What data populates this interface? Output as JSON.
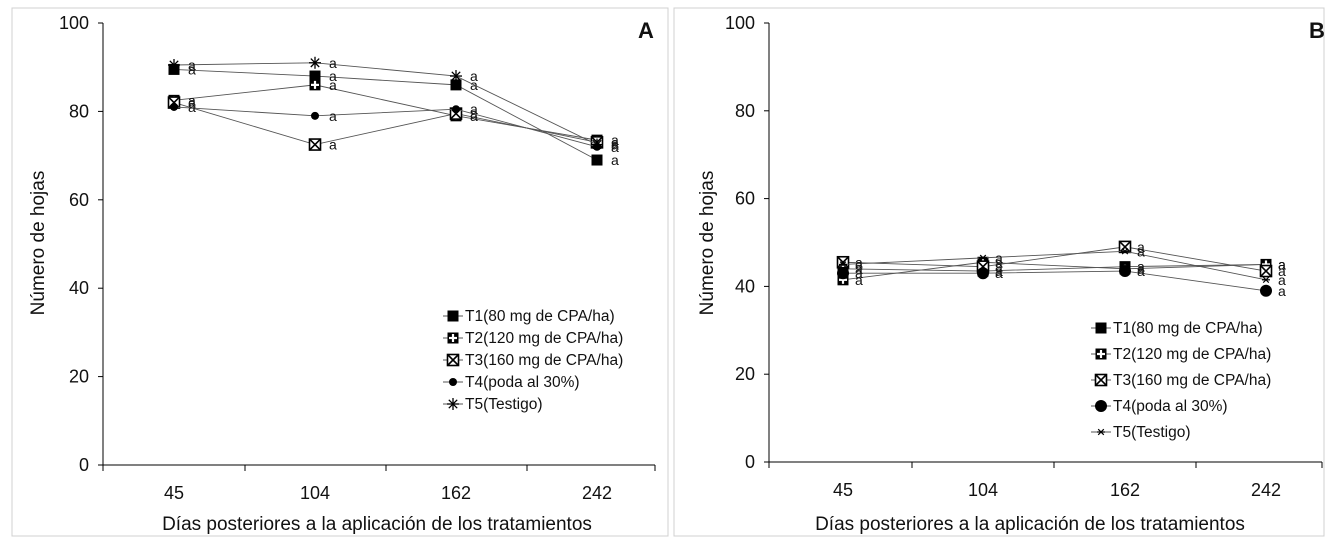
{
  "chart_data": [
    {
      "panel": "A",
      "type": "line",
      "xlabel": "Días posteriores a la aplicación de los tratamientos",
      "ylabel": "Número de hojas",
      "categories": [
        "45",
        "104",
        "162",
        "242"
      ],
      "ylim": [
        0,
        100
      ],
      "yticks": [
        "0",
        "20",
        "40",
        "60",
        "80",
        "100"
      ],
      "grid": false,
      "legend_position": "bottom-right",
      "series": [
        {
          "name": "T1(80 mg de CPA/ha)",
          "marker": "square",
          "values": [
            89.5,
            88.0,
            86.0,
            69.0
          ],
          "labels": [
            "a",
            "a",
            "a",
            "a"
          ]
        },
        {
          "name": "T2(120 mg de CPA/ha)",
          "marker": "square-cross",
          "values": [
            82.5,
            86.0,
            79.0,
            73.5
          ],
          "labels": [
            "a",
            "a",
            "a",
            "a"
          ]
        },
        {
          "name": "T3(160 mg de CPA/ha)",
          "marker": "square-x",
          "values": [
            82.0,
            72.5,
            79.5,
            73.0
          ],
          "labels": [
            "a",
            "a",
            "a",
            "a"
          ]
        },
        {
          "name": "T4(poda al 30%)",
          "marker": "circle-small",
          "values": [
            81.0,
            79.0,
            80.5,
            72.0
          ],
          "labels": [
            "a",
            "a",
            "a",
            "a"
          ]
        },
        {
          "name": "T5(Testigo)",
          "marker": "asterisk",
          "values": [
            90.5,
            91.0,
            88.0,
            72.5
          ],
          "labels": [
            "a",
            "a",
            "a",
            "a"
          ]
        }
      ]
    },
    {
      "panel": "B",
      "type": "line",
      "xlabel": "Días posteriores a la aplicación de los tratamientos",
      "ylabel": "Número de hojas",
      "categories": [
        "45",
        "104",
        "162",
        "242"
      ],
      "ylim": [
        0,
        100
      ],
      "yticks": [
        "0",
        "20",
        "40",
        "60",
        "80",
        "100"
      ],
      "grid": false,
      "legend_position": "bottom-right",
      "series": [
        {
          "name": "T1(80 mg de CPA/ha)",
          "marker": "square",
          "values": [
            44.0,
            43.5,
            44.5,
            45.0
          ],
          "labels": [
            "a",
            "a",
            "a",
            "a"
          ]
        },
        {
          "name": "T2(120 mg de CPA/ha)",
          "marker": "square-cross",
          "values": [
            41.5,
            45.5,
            44.0,
            45.0
          ],
          "labels": [
            "a",
            "a",
            "a",
            "a"
          ]
        },
        {
          "name": "T3(160 mg de CPA/ha)",
          "marker": "square-x",
          "values": [
            45.5,
            44.5,
            49.0,
            43.5
          ],
          "labels": [
            "a",
            "a",
            "a",
            "a"
          ]
        },
        {
          "name": "T4(poda al 30%)",
          "marker": "circle-large",
          "values": [
            43.0,
            43.0,
            43.5,
            39.0
          ],
          "labels": [
            "a",
            "a",
            "a",
            "a"
          ]
        },
        {
          "name": "T5(Testigo)",
          "marker": "asterisk-small",
          "values": [
            45.0,
            46.5,
            48.0,
            41.5
          ],
          "labels": [
            "a",
            "a",
            "a",
            "a"
          ]
        }
      ]
    }
  ]
}
